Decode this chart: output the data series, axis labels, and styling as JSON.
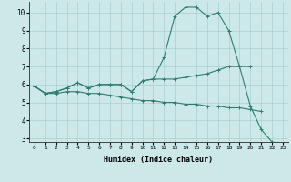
{
  "x": [
    0,
    1,
    2,
    3,
    4,
    5,
    6,
    7,
    8,
    9,
    10,
    11,
    12,
    13,
    14,
    15,
    16,
    17,
    18,
    19,
    20,
    21,
    22,
    23
  ],
  "line1": [
    5.9,
    5.5,
    5.6,
    5.8,
    6.1,
    5.8,
    6.0,
    6.0,
    6.0,
    5.6,
    6.2,
    6.3,
    7.5,
    9.8,
    10.3,
    10.3,
    9.8,
    10.0,
    9.0,
    7.0,
    4.8,
    3.5,
    2.8,
    2.7
  ],
  "line2": [
    5.9,
    5.5,
    5.6,
    5.8,
    6.1,
    5.8,
    6.0,
    6.0,
    6.0,
    5.6,
    6.2,
    6.3,
    6.3,
    6.3,
    6.4,
    6.5,
    6.6,
    6.8,
    7.0,
    7.0,
    7.0,
    null,
    null,
    null
  ],
  "line3": [
    5.9,
    5.5,
    5.5,
    5.6,
    5.6,
    5.5,
    5.5,
    5.4,
    5.3,
    5.2,
    5.1,
    5.1,
    5.0,
    5.0,
    4.9,
    4.9,
    4.8,
    4.8,
    4.7,
    4.7,
    4.6,
    4.5,
    null,
    null
  ],
  "color": "#2e7d6e",
  "bg_color": "#cde8e8",
  "grid_color": "#aacfcf",
  "xlabel": "Humidex (Indice chaleur)",
  "ylim": [
    2.8,
    10.6
  ],
  "yticks": [
    3,
    4,
    5,
    6,
    7,
    8,
    9,
    10
  ],
  "xlim": [
    -0.5,
    23.5
  ]
}
